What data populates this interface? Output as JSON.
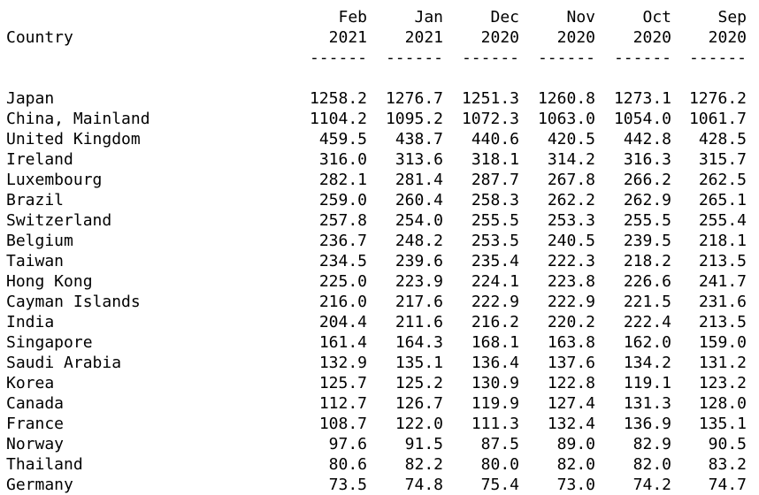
{
  "header": {
    "country_label": "Country",
    "columns": [
      {
        "month": "Feb",
        "year": "2021",
        "rule": "------"
      },
      {
        "month": "Jan",
        "year": "2021",
        "rule": "------"
      },
      {
        "month": "Dec",
        "year": "2020",
        "rule": "------"
      },
      {
        "month": "Nov",
        "year": "2020",
        "rule": "------"
      },
      {
        "month": "Oct",
        "year": "2020",
        "rule": "------"
      },
      {
        "month": "Sep",
        "year": "2020",
        "rule": "------"
      }
    ]
  },
  "rows": [
    {
      "country": "Japan",
      "values": [
        "1258.2",
        "1276.7",
        "1251.3",
        "1260.8",
        "1273.1",
        "1276.2"
      ]
    },
    {
      "country": "China, Mainland",
      "values": [
        "1104.2",
        "1095.2",
        "1072.3",
        "1063.0",
        "1054.0",
        "1061.7"
      ]
    },
    {
      "country": "United Kingdom",
      "values": [
        "459.5",
        "438.7",
        "440.6",
        "420.5",
        "442.8",
        "428.5"
      ]
    },
    {
      "country": "Ireland",
      "values": [
        "316.0",
        "313.6",
        "318.1",
        "314.2",
        "316.3",
        "315.7"
      ]
    },
    {
      "country": "Luxembourg",
      "values": [
        "282.1",
        "281.4",
        "287.7",
        "267.8",
        "266.2",
        "262.5"
      ]
    },
    {
      "country": "Brazil",
      "values": [
        "259.0",
        "260.4",
        "258.3",
        "262.2",
        "262.9",
        "265.1"
      ]
    },
    {
      "country": "Switzerland",
      "values": [
        "257.8",
        "254.0",
        "255.5",
        "253.3",
        "255.5",
        "255.4"
      ]
    },
    {
      "country": "Belgium",
      "values": [
        "236.7",
        "248.2",
        "253.5",
        "240.5",
        "239.5",
        "218.1"
      ]
    },
    {
      "country": "Taiwan",
      "values": [
        "234.5",
        "239.6",
        "235.4",
        "222.3",
        "218.2",
        "213.5"
      ]
    },
    {
      "country": "Hong Kong",
      "values": [
        "225.0",
        "223.9",
        "224.1",
        "223.8",
        "226.6",
        "241.7"
      ]
    },
    {
      "country": "Cayman Islands",
      "values": [
        "216.0",
        "217.6",
        "222.9",
        "222.9",
        "221.5",
        "231.6"
      ]
    },
    {
      "country": "India",
      "values": [
        "204.4",
        "211.6",
        "216.2",
        "220.2",
        "222.4",
        "213.5"
      ]
    },
    {
      "country": "Singapore",
      "values": [
        "161.4",
        "164.3",
        "168.1",
        "163.8",
        "162.0",
        "159.0"
      ]
    },
    {
      "country": "Saudi Arabia",
      "values": [
        "132.9",
        "135.1",
        "136.4",
        "137.6",
        "134.2",
        "131.2"
      ]
    },
    {
      "country": "Korea",
      "values": [
        "125.7",
        "125.2",
        "130.9",
        "122.8",
        "119.1",
        "123.2"
      ]
    },
    {
      "country": "Canada",
      "values": [
        "112.7",
        "126.7",
        "119.9",
        "127.4",
        "131.3",
        "128.0"
      ]
    },
    {
      "country": "France",
      "values": [
        "108.7",
        "122.0",
        "111.3",
        "132.4",
        "136.9",
        "135.1"
      ]
    },
    {
      "country": "Norway",
      "values": [
        "97.6",
        "91.5",
        "87.5",
        "89.0",
        "82.9",
        "90.5"
      ]
    },
    {
      "country": "Thailand",
      "values": [
        "80.6",
        "82.2",
        "80.0",
        "82.0",
        "82.0",
        "83.2"
      ]
    },
    {
      "country": "Germany",
      "values": [
        "73.5",
        "74.8",
        "75.4",
        "73.0",
        "74.2",
        "74.7"
      ]
    }
  ]
}
